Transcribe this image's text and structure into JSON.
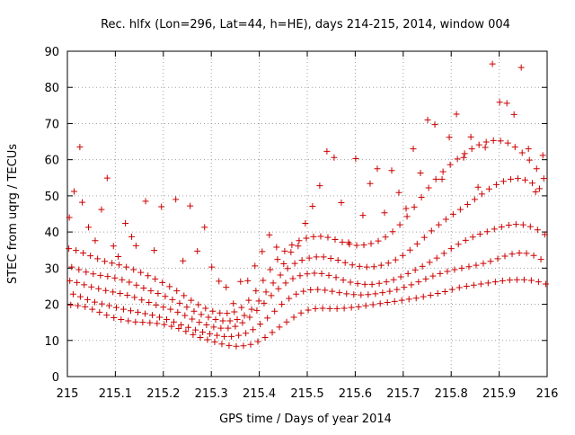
{
  "chart_data": {
    "type": "scatter",
    "title": "Rec. hlfx (Lon=296, Lat=44, h=HE), days 214-215, 2014, window 004",
    "xlabel": "GPS time / Days of year 2014",
    "ylabel": "STEC from uqrg / TECUs",
    "xlim": [
      215,
      216
    ],
    "ylim": [
      0,
      90
    ],
    "xticks": [
      215,
      215.1,
      215.2,
      215.3,
      215.4,
      215.5,
      215.6,
      215.7,
      215.8,
      215.9,
      216
    ],
    "xtick_labels": [
      "215",
      "215.1",
      "215.2",
      "215.3",
      "215.4",
      "215.5",
      "215.6",
      "215.7",
      "215.8",
      "215.9",
      "216"
    ],
    "yticks": [
      0,
      10,
      20,
      30,
      40,
      50,
      60,
      70,
      80,
      90
    ],
    "ytick_labels": [
      "0",
      "10",
      "20",
      "30",
      "40",
      "50",
      "60",
      "70",
      "80",
      "90"
    ],
    "grid": true,
    "marker": "+",
    "marker_color": "#cc0000",
    "series": [
      {
        "x": [
          215.007,
          215.022,
          215.037,
          215.052,
          215.067,
          215.082,
          215.097,
          215.112,
          215.127,
          215.142,
          215.157,
          215.172,
          215.187,
          215.202,
          215.217,
          215.232,
          215.247,
          215.262,
          215.277,
          215.292,
          215.307,
          215.322,
          215.337,
          215.352,
          215.367,
          215.382,
          215.397,
          215.412,
          215.427,
          215.442,
          215.457,
          215.472,
          215.487,
          215.502,
          215.517,
          215.532,
          215.547,
          215.562,
          215.577,
          215.592,
          215.607,
          215.622,
          215.637,
          215.652,
          215.667,
          215.682,
          215.697,
          215.712,
          215.727,
          215.742,
          215.757,
          215.772,
          215.787,
          215.802,
          215.817,
          215.832,
          215.847,
          215.862,
          215.877,
          215.892,
          215.907,
          215.922,
          215.937,
          215.952,
          215.967,
          215.982,
          215.997
        ],
        "y": [
          19.8,
          19.6,
          19.3,
          18.6,
          17.8,
          17.0,
          16.3,
          15.8,
          15.4,
          15.1,
          15.0,
          14.9,
          14.7,
          14.4,
          13.9,
          13.3,
          12.5,
          11.6,
          10.8,
          10.2,
          9.6,
          9.0,
          8.6,
          8.4,
          8.5,
          8.9,
          9.7,
          10.8,
          12.2,
          13.7,
          15.1,
          16.4,
          17.6,
          18.4,
          18.8,
          18.9,
          18.8,
          18.8,
          18.9,
          19.1,
          19.3,
          19.6,
          19.9,
          20.2,
          20.5,
          20.8,
          21.1,
          21.4,
          21.7,
          22.1,
          22.5,
          23.0,
          23.5,
          24.1,
          24.6,
          25.0,
          25.3,
          25.6,
          25.9,
          26.2,
          26.5,
          26.7,
          26.8,
          26.8,
          26.6,
          26.2,
          25.6
        ]
      },
      {
        "x": [
          215.012,
          215.027,
          215.042,
          215.057,
          215.072,
          215.087,
          215.102,
          215.117,
          215.132,
          215.147,
          215.162,
          215.177,
          215.192,
          215.207,
          215.222,
          215.237,
          215.252,
          215.267,
          215.282,
          215.297,
          215.312,
          215.327,
          215.342,
          215.357,
          215.372,
          215.387,
          215.402,
          215.417,
          215.432,
          215.447,
          215.462,
          215.477,
          215.492,
          215.507,
          215.522,
          215.537,
          215.552,
          215.567,
          215.582,
          215.597,
          215.612,
          215.627,
          215.642,
          215.657,
          215.672,
          215.687,
          215.702,
          215.717,
          215.732,
          215.747,
          215.762,
          215.777,
          215.792,
          215.807,
          215.822,
          215.837,
          215.852,
          215.867,
          215.882,
          215.897,
          215.912,
          215.927,
          215.942,
          215.957,
          215.972,
          215.987
        ],
        "y": [
          22.8,
          22.1,
          21.3,
          20.6,
          20.1,
          19.6,
          19.1,
          18.6,
          18.2,
          17.8,
          17.4,
          17.0,
          16.4,
          15.8,
          15.1,
          14.3,
          13.6,
          12.9,
          12.3,
          11.8,
          11.4,
          11.1,
          11.1,
          11.4,
          12.0,
          13.0,
          14.5,
          16.2,
          18.1,
          20.0,
          21.6,
          22.8,
          23.6,
          24.0,
          24.1,
          23.9,
          23.6,
          23.2,
          22.9,
          22.7,
          22.6,
          22.7,
          22.9,
          23.2,
          23.6,
          24.1,
          24.7,
          25.4,
          26.2,
          27.0,
          27.8,
          28.5,
          29.1,
          29.6,
          30.0,
          30.4,
          30.8,
          31.3,
          31.9,
          32.6,
          33.3,
          33.9,
          34.2,
          34.1,
          33.5,
          32.4
        ]
      },
      {
        "x": [
          215.005,
          215.02,
          215.035,
          215.05,
          215.065,
          215.08,
          215.095,
          215.11,
          215.125,
          215.14,
          215.155,
          215.17,
          215.185,
          215.2,
          215.215,
          215.23,
          215.245,
          215.26,
          215.275,
          215.29,
          215.305,
          215.32,
          215.335,
          215.35,
          215.365,
          215.38,
          215.395,
          215.41,
          215.425,
          215.44,
          215.455,
          215.47,
          215.485,
          215.5,
          215.515,
          215.53,
          215.545,
          215.56,
          215.575,
          215.59,
          215.605,
          215.62,
          215.635,
          215.65,
          215.665,
          215.68,
          215.695,
          215.71,
          215.725,
          215.74,
          215.755,
          215.77,
          215.785,
          215.8,
          215.815,
          215.83,
          215.845,
          215.86,
          215.875,
          215.89,
          215.905,
          215.92,
          215.935,
          215.95,
          215.965,
          215.98,
          215.995
        ],
        "y": [
          26.5,
          26.0,
          25.4,
          24.8,
          24.3,
          23.8,
          23.4,
          23.0,
          22.5,
          21.9,
          21.2,
          20.5,
          19.8,
          19.2,
          18.6,
          17.8,
          16.9,
          15.9,
          15.0,
          14.3,
          13.7,
          13.4,
          13.4,
          13.9,
          14.9,
          16.4,
          18.3,
          20.3,
          22.4,
          24.3,
          25.9,
          27.1,
          27.9,
          28.4,
          28.6,
          28.5,
          28.0,
          27.4,
          26.7,
          26.1,
          25.7,
          25.5,
          25.5,
          25.8,
          26.2,
          26.8,
          27.6,
          28.5,
          29.5,
          30.5,
          31.6,
          32.8,
          34.1,
          35.4,
          36.6,
          37.7,
          38.6,
          39.4,
          40.1,
          40.8,
          41.4,
          41.9,
          42.1,
          42.0,
          41.5,
          40.6,
          39.3
        ]
      },
      {
        "x": [
          215.009,
          215.024,
          215.039,
          215.054,
          215.069,
          215.084,
          215.099,
          215.114,
          215.129,
          215.144,
          215.159,
          215.174,
          215.189,
          215.204,
          215.219,
          215.234,
          215.249,
          215.264,
          215.279,
          215.294,
          215.309,
          215.324,
          215.339,
          215.354,
          215.369,
          215.384,
          215.399,
          215.414,
          215.429,
          215.444,
          215.459,
          215.474,
          215.489,
          215.504,
          215.519,
          215.534,
          215.549,
          215.564,
          215.579,
          215.594,
          215.609,
          215.624,
          215.639,
          215.654,
          215.669,
          215.684,
          215.699,
          215.714,
          215.729,
          215.744,
          215.759,
          215.774,
          215.789,
          215.804,
          215.819,
          215.834,
          215.849,
          215.864,
          215.879,
          215.894,
          215.909,
          215.924,
          215.939,
          215.954,
          215.969,
          215.984
        ],
        "y": [
          30.3,
          29.6,
          28.9,
          28.4,
          28.0,
          27.7,
          27.3,
          26.8,
          26.1,
          25.3,
          24.5,
          23.7,
          23.0,
          22.2,
          21.3,
          20.3,
          19.2,
          18.1,
          17.2,
          16.4,
          15.8,
          15.4,
          15.4,
          15.8,
          16.9,
          18.6,
          20.9,
          23.4,
          25.9,
          28.1,
          29.9,
          31.3,
          32.2,
          32.8,
          33.1,
          33.1,
          32.7,
          32.2,
          31.5,
          30.9,
          30.5,
          30.3,
          30.4,
          30.8,
          31.4,
          32.3,
          33.5,
          35.0,
          36.7,
          38.5,
          40.3,
          42.0,
          43.5,
          44.9,
          46.2,
          47.6,
          49.0,
          50.5,
          51.9,
          53.1,
          54.0,
          54.6,
          54.8,
          54.4,
          53.5,
          52.0
        ]
      },
      {
        "x": [
          215.003,
          215.018,
          215.033,
          215.048,
          215.063,
          215.078,
          215.093,
          215.108,
          215.123,
          215.138,
          215.153,
          215.168,
          215.183,
          215.198,
          215.213,
          215.228,
          215.243,
          215.258,
          215.273,
          215.288,
          215.303,
          215.318,
          215.333,
          215.348,
          215.363,
          215.378,
          215.393,
          215.408,
          215.423,
          215.438,
          215.453,
          215.468,
          215.483,
          215.498,
          215.513,
          215.528,
          215.543,
          215.558,
          215.573,
          215.588,
          215.603,
          215.618,
          215.633,
          215.648,
          215.663,
          215.678,
          215.693,
          215.708,
          215.723,
          215.738,
          215.753,
          215.768,
          215.783,
          215.798,
          215.813,
          215.828,
          215.843,
          215.858,
          215.873,
          215.888,
          215.903,
          215.918,
          215.933,
          215.948,
          215.963,
          215.978,
          215.993
        ],
        "y": [
          35.4,
          34.9,
          34.2,
          33.4,
          32.6,
          31.9,
          31.4,
          30.9,
          30.3,
          29.6,
          28.8,
          27.9,
          27.0,
          26.0,
          24.9,
          23.7,
          22.4,
          21.1,
          19.9,
          18.9,
          18.1,
          17.6,
          17.5,
          17.9,
          19.1,
          21.1,
          23.7,
          26.6,
          29.6,
          32.4,
          34.7,
          36.4,
          37.6,
          38.3,
          38.7,
          38.8,
          38.5,
          37.9,
          37.2,
          36.6,
          36.3,
          36.4,
          36.8,
          37.5,
          38.6,
          40.1,
          42.0,
          44.3,
          46.9,
          49.6,
          52.2,
          54.6,
          56.7,
          58.6,
          60.2,
          61.7,
          63.0,
          64.1,
          64.9,
          65.3,
          65.2,
          64.6,
          63.5,
          61.9,
          59.9,
          57.5,
          54.8
        ]
      },
      {
        "x": [
          215.004,
          215.014,
          215.026,
          215.031,
          215.044,
          215.058,
          215.071,
          215.083,
          215.096,
          215.106,
          215.121,
          215.134,
          215.143,
          215.163,
          215.181,
          215.196,
          215.226,
          215.241,
          215.256,
          215.271,
          215.286,
          215.301,
          215.316,
          215.331,
          215.346,
          215.361,
          215.376,
          215.391,
          215.406,
          215.421,
          215.436,
          215.451,
          215.466,
          215.481,
          215.496,
          215.511,
          215.526,
          215.541,
          215.556,
          215.571,
          215.586,
          215.601,
          215.616,
          215.631,
          215.646,
          215.661,
          215.676,
          215.691,
          215.706,
          215.721,
          215.736,
          215.751,
          215.766,
          215.781,
          215.796,
          215.811,
          215.826,
          215.841,
          215.856,
          215.871,
          215.886,
          215.901,
          215.916,
          215.931,
          215.946,
          215.961,
          215.976,
          215.991
        ],
        "y": [
          44.0,
          51.2,
          63.5,
          48.2,
          41.3,
          37.6,
          46.2,
          54.9,
          36.1,
          33.2,
          42.4,
          38.7,
          36.2,
          48.5,
          34.9,
          47.0,
          49.0,
          32.0,
          47.2,
          34.7,
          41.3,
          30.3,
          26.4,
          24.7,
          20.2,
          26.3,
          26.5,
          30.6,
          34.6,
          39.2,
          35.8,
          31.2,
          34.4,
          36.1,
          42.4,
          47.1,
          52.8,
          62.3,
          60.6,
          48.1,
          37.1,
          60.3,
          44.6,
          53.4,
          57.5,
          45.3,
          57.0,
          50.9,
          46.5,
          63.0,
          56.3,
          71.0,
          69.7,
          54.6,
          66.2,
          72.6,
          60.6,
          66.3,
          52.4,
          63.4,
          86.5,
          75.9,
          75.6,
          72.5,
          85.5,
          63.0,
          51.1,
          61.2
        ]
      }
    ]
  }
}
